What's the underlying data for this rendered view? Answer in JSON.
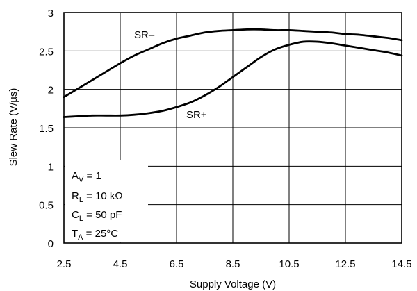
{
  "chart_data": {
    "type": "line",
    "xlabel": "Supply Voltage (V)",
    "ylabel": "Slew Rate (V/µs)",
    "xlim": [
      2.5,
      14.5
    ],
    "ylim": [
      0,
      3
    ],
    "grid": true,
    "x_ticks": [
      "2.5",
      "4.5",
      "6.5",
      "8.5",
      "10.5",
      "12.5",
      "14.5"
    ],
    "y_ticks": [
      "0",
      "0.5",
      "1",
      "1.5",
      "2",
      "2.5",
      "3"
    ],
    "series": [
      {
        "name": "SR–",
        "x": [
          2.5,
          3,
          3.5,
          4,
          4.5,
          5,
          5.5,
          6,
          6.5,
          7,
          7.5,
          8,
          8.5,
          9,
          9.5,
          10,
          10.5,
          11,
          11.5,
          12,
          12.5,
          13,
          13.5,
          14,
          14.5
        ],
        "y": [
          1.9,
          2.01,
          2.12,
          2.23,
          2.34,
          2.44,
          2.52,
          2.6,
          2.66,
          2.7,
          2.74,
          2.76,
          2.77,
          2.78,
          2.78,
          2.77,
          2.77,
          2.76,
          2.75,
          2.74,
          2.72,
          2.71,
          2.69,
          2.67,
          2.64
        ]
      },
      {
        "name": "SR+",
        "x": [
          2.5,
          3,
          3.5,
          4,
          4.5,
          5,
          5.5,
          6,
          6.5,
          7,
          7.5,
          8,
          8.5,
          9,
          9.5,
          10,
          10.5,
          11,
          11.5,
          12,
          12.5,
          13,
          13.5,
          14,
          14.5
        ],
        "y": [
          1.64,
          1.65,
          1.66,
          1.66,
          1.66,
          1.67,
          1.69,
          1.72,
          1.77,
          1.83,
          1.92,
          2.03,
          2.16,
          2.29,
          2.42,
          2.52,
          2.58,
          2.62,
          2.62,
          2.6,
          2.57,
          2.54,
          2.51,
          2.48,
          2.44
        ]
      }
    ],
    "annotations": {
      "sr_minus": "SR–",
      "sr_plus": "SR+",
      "conditions": [
        {
          "main": "A",
          "sub": "V",
          "rest": " = 1"
        },
        {
          "main": "R",
          "sub": "L",
          "rest": " = 10 kΩ"
        },
        {
          "main": "C",
          "sub": "L",
          "rest": " = 50 pF"
        },
        {
          "main": "T",
          "sub": "A",
          "rest": " = 25°C"
        }
      ]
    }
  }
}
